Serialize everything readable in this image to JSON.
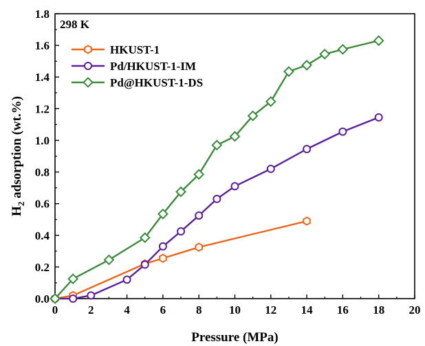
{
  "chart_data": {
    "type": "line",
    "title": "",
    "annotation": "298 K",
    "xlabel": "Pressure (MPa)",
    "ylabel_main": "H",
    "ylabel_sub": "2",
    "ylabel_rest": " adsorption (wt.%)",
    "xlim": [
      0,
      20
    ],
    "ylim": [
      0,
      1.8
    ],
    "x_ticks": [
      "0",
      "2",
      "4",
      "6",
      "8",
      "10",
      "12",
      "14",
      "16",
      "18",
      "20"
    ],
    "y_ticks": [
      "0.0",
      "0.2",
      "0.4",
      "0.6",
      "0.8",
      "1.0",
      "1.2",
      "1.4",
      "1.6",
      "1.8"
    ],
    "grid": false,
    "legend_position": "top-left",
    "series": [
      {
        "name": "HKUST-1",
        "color": "#e8661a",
        "marker": "hexagon",
        "x": [
          0,
          1,
          5,
          6,
          8,
          14
        ],
        "y": [
          0.0,
          0.02,
          0.22,
          0.255,
          0.325,
          0.49
        ]
      },
      {
        "name": "Pd/HKUST-1-IM",
        "color": "#5a1f9a",
        "marker": "circle",
        "x": [
          0,
          1,
          2,
          4,
          5,
          6,
          7,
          8,
          9,
          10,
          12,
          14,
          16,
          18
        ],
        "y": [
          0.0,
          0.0,
          0.02,
          0.12,
          0.215,
          0.33,
          0.425,
          0.525,
          0.63,
          0.71,
          0.82,
          0.945,
          1.055,
          1.145
        ]
      },
      {
        "name": "Pd@HKUST-1-DS",
        "color": "#3a8a3a",
        "marker": "diamond",
        "x": [
          0,
          1,
          3,
          5,
          6,
          7,
          8,
          9,
          10,
          11,
          12,
          13,
          14,
          15,
          16,
          18
        ],
        "y": [
          0.0,
          0.125,
          0.245,
          0.385,
          0.535,
          0.675,
          0.785,
          0.97,
          1.025,
          1.155,
          1.245,
          1.435,
          1.475,
          1.545,
          1.575,
          1.63
        ]
      }
    ]
  }
}
